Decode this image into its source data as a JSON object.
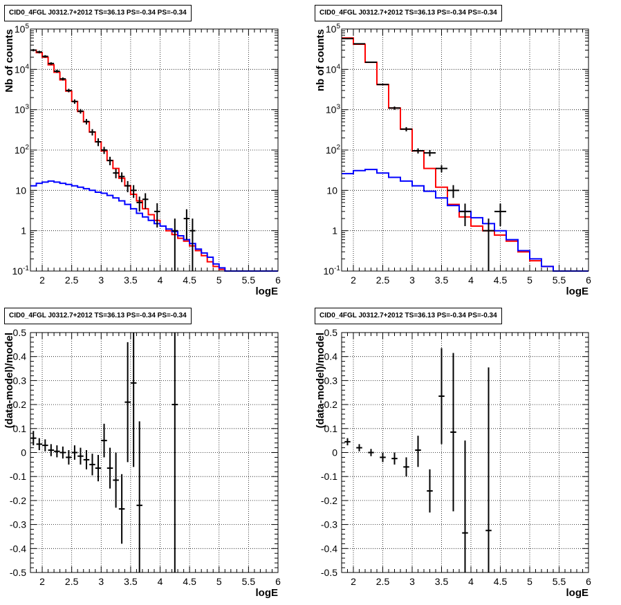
{
  "chart_data": [
    {
      "type": "step-histogram",
      "title": "CID0_4FGL J0312.7+2012 TS=36.13 PS=-0.34 PS=-0.34",
      "xlabel": "logE",
      "ylabel": "Nb of counts",
      "xlim": [
        1.8,
        6.0
      ],
      "ylim": [
        0.1,
        100000
      ],
      "yscale": "log",
      "grid": true,
      "x_ticks": [
        "2",
        "2.5",
        "3",
        "3.5",
        "4",
        "4.5",
        "5",
        "5.5",
        "6"
      ],
      "y_ticks": [
        "10^-1",
        "1",
        "10",
        "10^2",
        "10^3",
        "10^4",
        "10^5"
      ],
      "series": [
        {
          "color": "#ff0000",
          "edges": [
            1.8,
            1.9,
            2.0,
            2.1,
            2.2,
            2.3,
            2.4,
            2.5,
            2.6,
            2.7,
            2.8,
            2.9,
            3.0,
            3.1,
            3.2,
            3.3,
            3.4,
            3.5,
            3.6,
            3.7,
            3.8,
            3.9,
            4.0,
            4.1,
            4.2,
            4.3,
            4.4,
            4.5,
            4.6,
            4.7,
            4.8,
            4.9,
            5.0,
            5.1,
            5.2,
            5.3,
            5.4,
            5.5,
            5.6,
            5.7,
            5.8,
            5.9,
            6.0
          ],
          "values": [
            30000,
            26000,
            20000,
            13000,
            8500,
            5500,
            2900,
            1600,
            900,
            500,
            280,
            160,
            95,
            55,
            35,
            20,
            13,
            8,
            5.5,
            3.5,
            2.5,
            1.8,
            1.3,
            1.0,
            0.8,
            0.65,
            0.55,
            0.42,
            0.32,
            0.24,
            0.17,
            0.13,
            0.11,
            0.1,
            0.1,
            0.1,
            0.1,
            0.1,
            0.1,
            0.1,
            0.1,
            0.1
          ]
        },
        {
          "color": "#0000ff",
          "edges": [
            1.8,
            1.9,
            2.0,
            2.1,
            2.2,
            2.3,
            2.4,
            2.5,
            2.6,
            2.7,
            2.8,
            2.9,
            3.0,
            3.1,
            3.2,
            3.3,
            3.4,
            3.5,
            3.6,
            3.7,
            3.8,
            3.9,
            4.0,
            4.1,
            4.2,
            4.3,
            4.4,
            4.5,
            4.6,
            4.7,
            4.8,
            4.9,
            5.0,
            5.1,
            5.2,
            5.3,
            5.4,
            5.5,
            5.6,
            5.7,
            5.8,
            5.9,
            6.0
          ],
          "values": [
            13,
            15,
            16,
            17,
            16,
            15,
            14,
            13,
            12,
            11,
            10,
            9,
            8.5,
            7.5,
            6.5,
            5.5,
            4.5,
            3.5,
            2.7,
            2.2,
            1.8,
            1.5,
            1.3,
            1.1,
            0.95,
            0.75,
            0.6,
            0.48,
            0.35,
            0.28,
            0.22,
            0.15,
            0.12,
            0.1,
            0.1,
            0.1,
            0.1,
            0.1,
            0.1,
            0.1,
            0.1,
            0.1
          ]
        }
      ],
      "points": [
        {
          "x": 1.85,
          "y": 30000,
          "lo": 28000,
          "hi": 32000
        },
        {
          "x": 1.95,
          "y": 27000,
          "lo": 25000,
          "hi": 29000
        },
        {
          "x": 2.05,
          "y": 21000,
          "lo": 19500,
          "hi": 22500
        },
        {
          "x": 2.15,
          "y": 14000,
          "lo": 13000,
          "hi": 15000
        },
        {
          "x": 2.25,
          "y": 9000,
          "lo": 8200,
          "hi": 9800
        },
        {
          "x": 2.35,
          "y": 5800,
          "lo": 5300,
          "hi": 6300
        },
        {
          "x": 2.45,
          "y": 3000,
          "lo": 2700,
          "hi": 3300
        },
        {
          "x": 2.55,
          "y": 1600,
          "lo": 1400,
          "hi": 1800
        },
        {
          "x": 2.65,
          "y": 920,
          "lo": 800,
          "hi": 1040
        },
        {
          "x": 2.75,
          "y": 510,
          "lo": 430,
          "hi": 590
        },
        {
          "x": 2.85,
          "y": 280,
          "lo": 230,
          "hi": 330
        },
        {
          "x": 2.95,
          "y": 160,
          "lo": 125,
          "hi": 195
        },
        {
          "x": 3.05,
          "y": 100,
          "lo": 80,
          "hi": 120
        },
        {
          "x": 3.15,
          "y": 55,
          "lo": 42,
          "hi": 68
        },
        {
          "x": 3.25,
          "y": 27,
          "lo": 20,
          "hi": 34
        },
        {
          "x": 3.35,
          "y": 22,
          "lo": 16,
          "hi": 28
        },
        {
          "x": 3.45,
          "y": 13,
          "lo": 9,
          "hi": 17
        },
        {
          "x": 3.55,
          "y": 10,
          "lo": 6.5,
          "hi": 13.5
        },
        {
          "x": 3.65,
          "y": 5,
          "lo": 3,
          "hi": 7
        },
        {
          "x": 3.75,
          "y": 6,
          "lo": 3.5,
          "hi": 8.5
        },
        {
          "x": 3.95,
          "y": 3,
          "lo": 1.2,
          "hi": 4.8
        },
        {
          "x": 4.25,
          "y": 1,
          "lo": 0.1,
          "hi": 2
        },
        {
          "x": 4.45,
          "y": 2,
          "lo": 0.6,
          "hi": 3.4
        },
        {
          "x": 4.55,
          "y": 1,
          "lo": 0.1,
          "hi": 2
        }
      ]
    },
    {
      "type": "step-histogram",
      "title": "CID0_4FGL J0312.7+2012 TS=36.13 PS=-0.34 PS=-0.34",
      "xlabel": "logE",
      "ylabel": "nb of counts",
      "xlim": [
        1.8,
        6.0
      ],
      "ylim": [
        0.1,
        100000
      ],
      "yscale": "log",
      "grid": true,
      "x_ticks": [
        "2",
        "2.5",
        "3",
        "3.5",
        "4",
        "4.5",
        "5",
        "5.5",
        "6"
      ],
      "y_ticks": [
        "10^-1",
        "1",
        "10",
        "10^2",
        "10^3",
        "10^4",
        "10^5"
      ],
      "series": [
        {
          "color": "#ff0000",
          "edges": [
            1.8,
            2.0,
            2.2,
            2.4,
            2.6,
            2.8,
            3.0,
            3.2,
            3.4,
            3.6,
            3.8,
            4.0,
            4.2,
            4.4,
            4.6,
            4.8,
            5.0,
            5.2,
            5.4,
            5.6,
            5.8,
            6.0
          ],
          "values": [
            60000,
            42000,
            15000,
            4200,
            1100,
            330,
            95,
            35,
            12,
            4.5,
            2.2,
            1.3,
            1.0,
            0.78,
            0.55,
            0.3,
            0.18,
            0.13,
            0.1,
            0.1,
            0.1
          ]
        },
        {
          "color": "#0000ff",
          "edges": [
            1.8,
            2.0,
            2.2,
            2.4,
            2.6,
            2.8,
            3.0,
            3.2,
            3.4,
            3.6,
            3.8,
            4.0,
            4.2,
            4.4,
            4.6,
            4.8,
            5.0,
            5.2,
            5.4,
            5.6,
            5.8,
            6.0
          ],
          "values": [
            26,
            31,
            33,
            27,
            21,
            17,
            13,
            9.5,
            6.5,
            4.2,
            3.0,
            2.1,
            1.5,
            1.0,
            0.6,
            0.32,
            0.2,
            0.13,
            0.1,
            0.1,
            0.1
          ]
        }
      ],
      "points": [
        {
          "x": 1.9,
          "y": 58000,
          "lo": 56000,
          "hi": 60000
        },
        {
          "x": 2.1,
          "y": 43000,
          "lo": 41500,
          "hi": 44500
        },
        {
          "x": 2.3,
          "y": 15000,
          "lo": 14500,
          "hi": 15500
        },
        {
          "x": 2.5,
          "y": 4200,
          "lo": 4000,
          "hi": 4400
        },
        {
          "x": 2.7,
          "y": 1100,
          "lo": 1000,
          "hi": 1200
        },
        {
          "x": 2.9,
          "y": 330,
          "lo": 290,
          "hi": 370
        },
        {
          "x": 3.1,
          "y": 96,
          "lo": 82,
          "hi": 110
        },
        {
          "x": 3.3,
          "y": 85,
          "lo": 70,
          "hi": 100
        },
        {
          "x": 3.5,
          "y": 35,
          "lo": 28,
          "hi": 42
        },
        {
          "x": 3.7,
          "y": 10,
          "lo": 6.5,
          "hi": 13.5
        },
        {
          "x": 3.9,
          "y": 3,
          "lo": 1.3,
          "hi": 4.7
        },
        {
          "x": 4.3,
          "y": 1,
          "lo": 0.1,
          "hi": 2
        },
        {
          "x": 4.5,
          "y": 3,
          "lo": 1.3,
          "hi": 4.7
        }
      ]
    },
    {
      "type": "scatter",
      "title": "CID0_4FGL J0312.7+2012 TS=36.13 PS=-0.34 PS=-0.34",
      "xlabel": "logE",
      "ylabel": "(data-model)/model",
      "xlim": [
        1.8,
        6.0
      ],
      "ylim": [
        -0.5,
        0.5
      ],
      "grid": true,
      "x_ticks": [
        "2",
        "2.5",
        "3",
        "3.5",
        "4",
        "4.5",
        "5",
        "5.5",
        "6"
      ],
      "y_ticks": [
        "-0.5",
        "-0.4",
        "-0.3",
        "-0.2",
        "-0.1",
        "0",
        "0.1",
        "0.2",
        "0.3",
        "0.4",
        "0.5"
      ],
      "points": [
        {
          "x": 1.85,
          "y": 0.06,
          "lo": 0.03,
          "hi": 0.09
        },
        {
          "x": 1.95,
          "y": 0.035,
          "lo": 0.01,
          "hi": 0.06
        },
        {
          "x": 2.05,
          "y": 0.03,
          "lo": 0.005,
          "hi": 0.055
        },
        {
          "x": 2.15,
          "y": 0.01,
          "lo": -0.015,
          "hi": 0.035
        },
        {
          "x": 2.25,
          "y": 0.005,
          "lo": -0.02,
          "hi": 0.03
        },
        {
          "x": 2.35,
          "y": 0.0,
          "lo": -0.025,
          "hi": 0.025
        },
        {
          "x": 2.45,
          "y": -0.02,
          "lo": -0.05,
          "hi": 0.01
        },
        {
          "x": 2.55,
          "y": 0.0,
          "lo": -0.03,
          "hi": 0.03
        },
        {
          "x": 2.65,
          "y": -0.015,
          "lo": -0.05,
          "hi": 0.02
        },
        {
          "x": 2.75,
          "y": -0.03,
          "lo": -0.07,
          "hi": 0.01
        },
        {
          "x": 2.85,
          "y": -0.05,
          "lo": -0.095,
          "hi": -0.005
        },
        {
          "x": 2.95,
          "y": -0.065,
          "lo": -0.12,
          "hi": -0.01
        },
        {
          "x": 3.05,
          "y": 0.05,
          "lo": -0.02,
          "hi": 0.12
        },
        {
          "x": 3.15,
          "y": -0.065,
          "lo": -0.15,
          "hi": 0.02
        },
        {
          "x": 3.25,
          "y": -0.115,
          "lo": -0.23,
          "hi": 0.0
        },
        {
          "x": 3.35,
          "y": -0.235,
          "lo": -0.38,
          "hi": -0.09
        },
        {
          "x": 3.45,
          "y": 0.21,
          "lo": -0.04,
          "hi": 0.46
        },
        {
          "x": 3.55,
          "y": 0.29,
          "lo": -0.06,
          "hi": 0.5
        },
        {
          "x": 3.65,
          "y": -0.22,
          "lo": -0.5,
          "hi": 0.13
        },
        {
          "x": 4.25,
          "y": 0.2,
          "lo": -0.5,
          "hi": 0.5
        }
      ]
    },
    {
      "type": "scatter",
      "title": "CID0_4FGL J0312.7+2012 TS=36.13 PS=-0.34 PS=-0.34",
      "xlabel": "logE",
      "ylabel": "(data-model)/model",
      "xlim": [
        1.8,
        6.0
      ],
      "ylim": [
        -0.5,
        0.5
      ],
      "grid": true,
      "x_ticks": [
        "2",
        "2.5",
        "3",
        "3.5",
        "4",
        "4.5",
        "5",
        "5.5",
        "6"
      ],
      "y_ticks": [
        "-0.5",
        "-0.4",
        "-0.3",
        "-0.2",
        "-0.1",
        "0",
        "0.1",
        "0.2",
        "0.3",
        "0.4",
        "0.5"
      ],
      "points": [
        {
          "x": 1.9,
          "y": 0.045,
          "lo": 0.03,
          "hi": 0.06
        },
        {
          "x": 2.1,
          "y": 0.02,
          "lo": 0.005,
          "hi": 0.035
        },
        {
          "x": 2.3,
          "y": 0.0,
          "lo": -0.015,
          "hi": 0.015
        },
        {
          "x": 2.5,
          "y": -0.02,
          "lo": -0.04,
          "hi": 0.0
        },
        {
          "x": 2.7,
          "y": -0.025,
          "lo": -0.05,
          "hi": 0.0
        },
        {
          "x": 2.9,
          "y": -0.06,
          "lo": -0.1,
          "hi": -0.02
        },
        {
          "x": 3.1,
          "y": 0.01,
          "lo": -0.06,
          "hi": 0.07
        },
        {
          "x": 3.3,
          "y": -0.16,
          "lo": -0.25,
          "hi": -0.07
        },
        {
          "x": 3.5,
          "y": 0.235,
          "lo": 0.035,
          "hi": 0.435
        },
        {
          "x": 3.7,
          "y": 0.085,
          "lo": -0.245,
          "hi": 0.415
        },
        {
          "x": 3.9,
          "y": -0.335,
          "lo": -0.5,
          "hi": 0.05
        },
        {
          "x": 4.3,
          "y": -0.325,
          "lo": -0.5,
          "hi": 0.355
        }
      ]
    }
  ]
}
